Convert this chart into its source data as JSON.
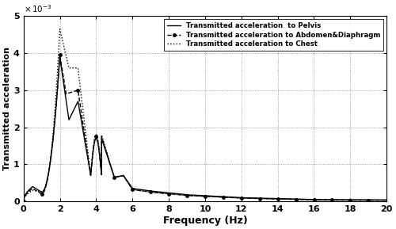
{
  "title": "",
  "xlabel": "Frequency (Hz)",
  "ylabel": "Transmitted acceleration",
  "xlim": [
    0,
    20
  ],
  "ylim": [
    0,
    0.005
  ],
  "ytick_vals": [
    0,
    0.001,
    0.002,
    0.003,
    0.004,
    0.005
  ],
  "ytick_labels": [
    "0",
    "1",
    "2",
    "3",
    "4",
    "5"
  ],
  "xticks": [
    0,
    2,
    4,
    6,
    8,
    10,
    12,
    14,
    16,
    18,
    20
  ],
  "legend": [
    "Transmitted acceleration  to Pelvis",
    "Transmitted acceleration to Abdomen&Diaphragm",
    "Transmitted acceleration to Chest"
  ],
  "line_color": "black",
  "background_color": "#ffffff",
  "grid_color": "#888888"
}
